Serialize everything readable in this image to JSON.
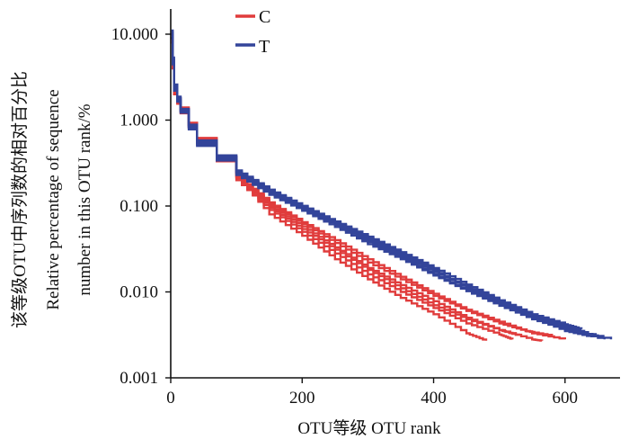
{
  "chart_data": {
    "type": "line",
    "title": "",
    "xlabel": "OTU等级  OTU rank",
    "ylabel": [
      "该等级OTU中序列数的相对百分比",
      "Relative percentage of sequence",
      "number in this OTU rank/%"
    ],
    "x_ticks": [
      0,
      200,
      400,
      600
    ],
    "y_ticks": [
      0.001,
      0.01,
      0.1,
      1,
      10
    ],
    "y_tick_labels": [
      "0.001",
      "0.010",
      "0.100",
      "1.000",
      "10.000"
    ],
    "xlim": [
      0,
      670
    ],
    "ylim": [
      0.001,
      15
    ],
    "y_scale": "log",
    "legend_position": "top-center",
    "series": [
      {
        "name": "C",
        "group": "C",
        "color": "#e03c3c",
        "points": [
          [
            1,
            9
          ],
          [
            5,
            2.2
          ],
          [
            15,
            1.3
          ],
          [
            40,
            0.6
          ],
          [
            100,
            0.22
          ],
          [
            150,
            0.08
          ],
          [
            200,
            0.045
          ],
          [
            250,
            0.024
          ],
          [
            300,
            0.014
          ],
          [
            350,
            0.0085
          ],
          [
            400,
            0.0055
          ],
          [
            450,
            0.0033
          ],
          [
            480,
            0.0027
          ]
        ]
      },
      {
        "name": "",
        "group": "C",
        "color": "#e03c3c",
        "points": [
          [
            1,
            8
          ],
          [
            5,
            2.0
          ],
          [
            15,
            1.2
          ],
          [
            40,
            0.55
          ],
          [
            100,
            0.2
          ],
          [
            150,
            0.09
          ],
          [
            200,
            0.05
          ],
          [
            250,
            0.028
          ],
          [
            300,
            0.016
          ],
          [
            350,
            0.01
          ],
          [
            400,
            0.0065
          ],
          [
            450,
            0.0043
          ],
          [
            500,
            0.0032
          ],
          [
            520,
            0.0028
          ]
        ]
      },
      {
        "name": "",
        "group": "C",
        "color": "#e03c3c",
        "points": [
          [
            1,
            9
          ],
          [
            5,
            2.1
          ],
          [
            15,
            1.3
          ],
          [
            40,
            0.6
          ],
          [
            100,
            0.22
          ],
          [
            150,
            0.1
          ],
          [
            200,
            0.058
          ],
          [
            250,
            0.033
          ],
          [
            300,
            0.019
          ],
          [
            350,
            0.012
          ],
          [
            400,
            0.0078
          ],
          [
            450,
            0.005
          ],
          [
            500,
            0.0036
          ],
          [
            550,
            0.0028
          ],
          [
            565,
            0.0027
          ]
        ]
      },
      {
        "name": "",
        "group": "C",
        "color": "#e03c3c",
        "points": [
          [
            1,
            10
          ],
          [
            5,
            2.3
          ],
          [
            15,
            1.4
          ],
          [
            40,
            0.62
          ],
          [
            100,
            0.23
          ],
          [
            150,
            0.11
          ],
          [
            200,
            0.065
          ],
          [
            250,
            0.04
          ],
          [
            300,
            0.024
          ],
          [
            350,
            0.015
          ],
          [
            400,
            0.0095
          ],
          [
            450,
            0.0062
          ],
          [
            500,
            0.0045
          ],
          [
            550,
            0.0033
          ],
          [
            600,
            0.0028
          ]
        ]
      },
      {
        "name": "",
        "group": "C",
        "color": "#e03c3c",
        "points": [
          [
            1,
            9
          ],
          [
            5,
            2.2
          ],
          [
            15,
            1.35
          ],
          [
            40,
            0.6
          ],
          [
            100,
            0.22
          ],
          [
            150,
            0.105
          ],
          [
            200,
            0.062
          ],
          [
            250,
            0.037
          ],
          [
            300,
            0.022
          ],
          [
            350,
            0.014
          ],
          [
            400,
            0.009
          ],
          [
            450,
            0.006
          ],
          [
            500,
            0.0043
          ],
          [
            540,
            0.0035
          ],
          [
            580,
            0.0031
          ]
        ]
      },
      {
        "name": "",
        "group": "C",
        "color": "#e03c3c",
        "points": [
          [
            1,
            8.5
          ],
          [
            5,
            2.0
          ],
          [
            15,
            1.25
          ],
          [
            40,
            0.56
          ],
          [
            100,
            0.21
          ],
          [
            150,
            0.095
          ],
          [
            200,
            0.054
          ],
          [
            250,
            0.031
          ],
          [
            300,
            0.018
          ],
          [
            350,
            0.011
          ],
          [
            400,
            0.007
          ],
          [
            450,
            0.0048
          ],
          [
            500,
            0.0036
          ],
          [
            530,
            0.0031
          ]
        ]
      },
      {
        "name": "T",
        "group": "T",
        "color": "#33449a",
        "points": [
          [
            1,
            10
          ],
          [
            5,
            2.5
          ],
          [
            15,
            1.3
          ],
          [
            40,
            0.55
          ],
          [
            100,
            0.25
          ],
          [
            150,
            0.15
          ],
          [
            200,
            0.1
          ],
          [
            250,
            0.065
          ],
          [
            300,
            0.042
          ],
          [
            350,
            0.028
          ],
          [
            400,
            0.018
          ],
          [
            450,
            0.011
          ],
          [
            500,
            0.0075
          ],
          [
            550,
            0.005
          ],
          [
            600,
            0.0035
          ],
          [
            640,
            0.003
          ]
        ]
      },
      {
        "name": "",
        "group": "T",
        "color": "#33449a",
        "points": [
          [
            1,
            9
          ],
          [
            5,
            2.3
          ],
          [
            15,
            1.25
          ],
          [
            40,
            0.52
          ],
          [
            100,
            0.24
          ],
          [
            150,
            0.14
          ],
          [
            200,
            0.092
          ],
          [
            250,
            0.06
          ],
          [
            300,
            0.038
          ],
          [
            350,
            0.025
          ],
          [
            400,
            0.016
          ],
          [
            450,
            0.0105
          ],
          [
            500,
            0.0072
          ],
          [
            550,
            0.005
          ],
          [
            600,
            0.0037
          ],
          [
            670,
            0.0028
          ]
        ]
      },
      {
        "name": "",
        "group": "T",
        "color": "#33449a",
        "points": [
          [
            1,
            11
          ],
          [
            5,
            2.6
          ],
          [
            15,
            1.35
          ],
          [
            40,
            0.58
          ],
          [
            100,
            0.26
          ],
          [
            150,
            0.155
          ],
          [
            200,
            0.1
          ],
          [
            250,
            0.066
          ],
          [
            300,
            0.044
          ],
          [
            350,
            0.029
          ],
          [
            400,
            0.019
          ],
          [
            450,
            0.0122
          ],
          [
            500,
            0.008
          ],
          [
            550,
            0.0055
          ],
          [
            600,
            0.0042
          ],
          [
            625,
            0.0037
          ]
        ]
      },
      {
        "name": "",
        "group": "T",
        "color": "#33449a",
        "points": [
          [
            1,
            9.5
          ],
          [
            5,
            2.4
          ],
          [
            15,
            1.28
          ],
          [
            40,
            0.54
          ],
          [
            100,
            0.245
          ],
          [
            150,
            0.145
          ],
          [
            200,
            0.095
          ],
          [
            250,
            0.062
          ],
          [
            300,
            0.04
          ],
          [
            350,
            0.026
          ],
          [
            400,
            0.017
          ],
          [
            450,
            0.0112
          ],
          [
            500,
            0.0076
          ],
          [
            550,
            0.0052
          ],
          [
            600,
            0.0038
          ],
          [
            650,
            0.003
          ]
        ]
      },
      {
        "name": "",
        "group": "T",
        "color": "#33449a",
        "points": [
          [
            1,
            10.5
          ],
          [
            5,
            2.5
          ],
          [
            15,
            1.32
          ],
          [
            40,
            0.56
          ],
          [
            100,
            0.25
          ],
          [
            150,
            0.15
          ],
          [
            200,
            0.098
          ],
          [
            250,
            0.064
          ],
          [
            300,
            0.041
          ],
          [
            350,
            0.027
          ],
          [
            400,
            0.0175
          ],
          [
            450,
            0.0115
          ],
          [
            500,
            0.0078
          ],
          [
            550,
            0.0054
          ],
          [
            600,
            0.004
          ],
          [
            635,
            0.0033
          ]
        ]
      },
      {
        "name": "",
        "group": "T",
        "color": "#33449a",
        "points": [
          [
            1,
            9
          ],
          [
            5,
            2.2
          ],
          [
            15,
            1.22
          ],
          [
            40,
            0.5
          ],
          [
            100,
            0.23
          ],
          [
            150,
            0.135
          ],
          [
            200,
            0.088
          ],
          [
            250,
            0.057
          ],
          [
            300,
            0.036
          ],
          [
            350,
            0.024
          ],
          [
            400,
            0.0155
          ],
          [
            450,
            0.0102
          ],
          [
            500,
            0.0069
          ],
          [
            550,
            0.0048
          ],
          [
            600,
            0.0036
          ],
          [
            660,
            0.0028
          ]
        ]
      }
    ]
  }
}
